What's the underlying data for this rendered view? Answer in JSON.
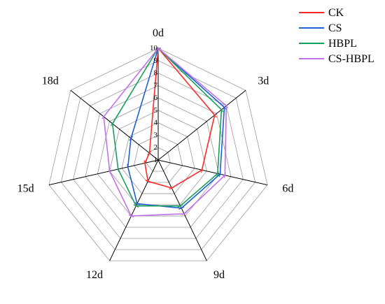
{
  "chart_data": {
    "type": "radar",
    "axes": [
      "0d",
      "3d",
      "6d",
      "9d",
      "12d",
      "15d",
      "18d"
    ],
    "r_ticks": [
      "1",
      "2",
      "3",
      "4",
      "5",
      "6",
      "7",
      "8",
      "9",
      "10"
    ],
    "r_range": [
      1,
      10
    ],
    "grid": true,
    "legend_position": "top-right",
    "series": [
      {
        "name": "CK",
        "color": "#ff2a2a",
        "values": [
          10,
          6.8,
          4.6,
          3.5,
          2.9,
          2.1,
          1.9
        ]
      },
      {
        "name": "CS",
        "color": "#1f5fd6",
        "values": [
          10,
          7.8,
          6.1,
          5.3,
          4.9,
          3.5,
          3.8
        ]
      },
      {
        "name": "HBPL",
        "color": "#17a05a",
        "values": [
          10,
          7.5,
          5.9,
          5.1,
          5.1,
          4.3,
          5.7
        ]
      },
      {
        "name": "CS-HBPL",
        "color": "#c071ea",
        "values": [
          10,
          8.0,
          6.5,
          5.8,
          6.0,
          5.0,
          6.6
        ]
      }
    ]
  }
}
